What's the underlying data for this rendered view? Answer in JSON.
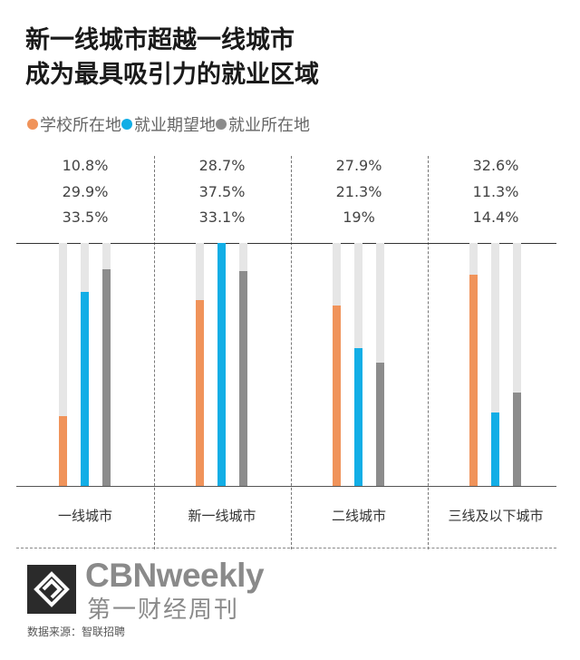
{
  "title_line1": "新一线城市超越一线城市",
  "title_line2": "成为最具吸引力的就业区域",
  "legend": [
    {
      "label": "学校所在地",
      "color": "#f0935a"
    },
    {
      "label": "就业期望地",
      "color": "#12aee6"
    },
    {
      "label": "就业所在地",
      "color": "#8c8c8c"
    }
  ],
  "chart_data": {
    "type": "bar",
    "categories": [
      "一线城市",
      "新一线城市",
      "二线城市",
      "三线及以下城市"
    ],
    "series": [
      {
        "name": "学校所在地",
        "color": "#f0935a",
        "values": [
          10.8,
          28.7,
          27.9,
          32.6
        ]
      },
      {
        "name": "就业期望地",
        "color": "#12aee6",
        "values": [
          29.9,
          37.5,
          21.3,
          11.3
        ]
      },
      {
        "name": "就业所在地",
        "color": "#8c8c8c",
        "values": [
          33.5,
          33.1,
          19,
          14.4
        ]
      }
    ],
    "value_labels": [
      [
        "10.8%",
        "29.9%",
        "33.5%"
      ],
      [
        "28.7%",
        "37.5%",
        "33.1%"
      ],
      [
        "27.9%",
        "21.3%",
        "19%"
      ],
      [
        "32.6%",
        "11.3%",
        "14.4%"
      ]
    ],
    "ylim": [
      0,
      37.5
    ]
  },
  "logo": {
    "brand": "CBNweekly",
    "brand_cn": "第一财经周刊"
  },
  "source": "数据来源：智联招聘"
}
